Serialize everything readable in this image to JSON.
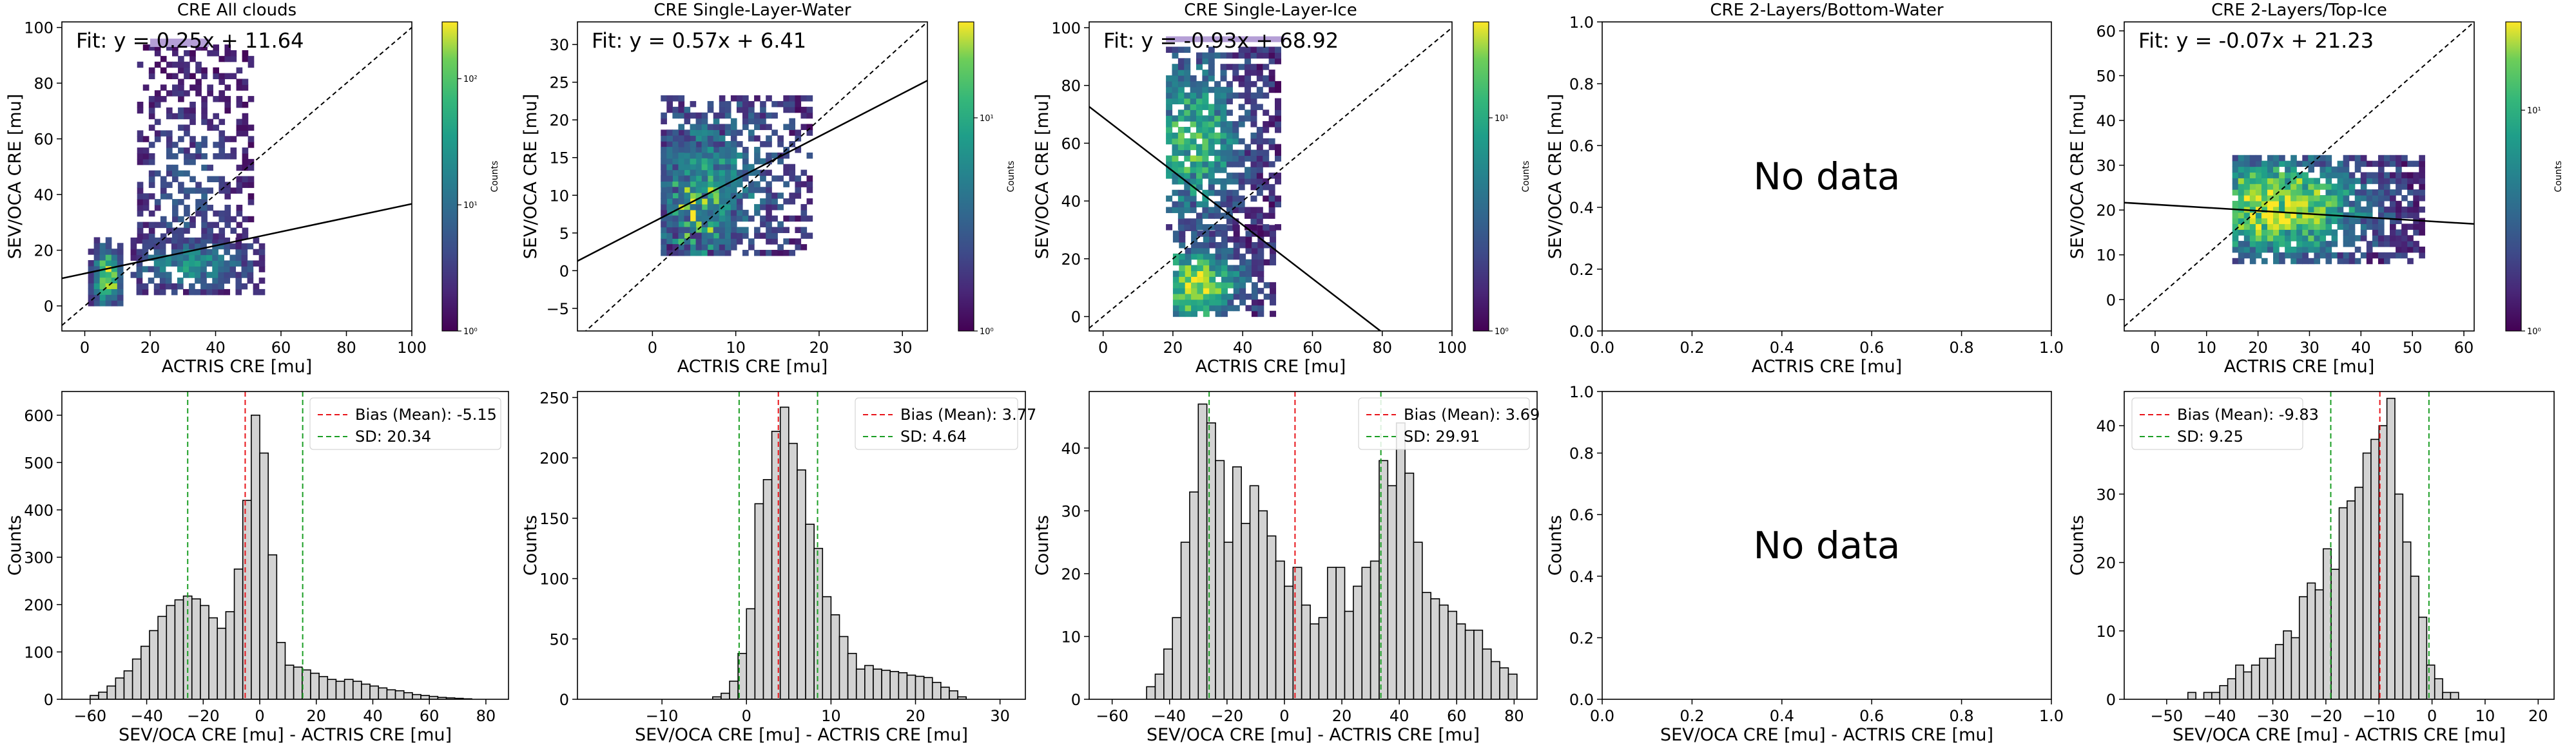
{
  "chart_data": [
    {
      "type": "heatmap",
      "title": "CRE All clouds",
      "xlabel": "ACTRIS CRE [mu]",
      "ylabel": "SEV/OCA CRE [mu]",
      "xlim": [
        -7,
        100
      ],
      "ylim": [
        -9,
        102
      ],
      "xticks": [
        0,
        20,
        40,
        60,
        80,
        100
      ],
      "yticks": [
        0,
        20,
        40,
        60,
        80,
        100
      ],
      "fit_text": "Fit: y = 0.25x + 11.64",
      "fit": {
        "slope": 0.25,
        "intercept": 11.64
      },
      "colorbar": {
        "label": "Counts",
        "ticks": [
          "10⁰",
          "10¹",
          "10²"
        ],
        "log_range": [
          0,
          2.45
        ]
      },
      "density": [
        {
          "x": [
            1,
            10
          ],
          "y": [
            0,
            24
          ],
          "peak": [
            6,
            9
          ],
          "max": 2.4,
          "spread": 0.8
        },
        {
          "x": [
            14,
            55
          ],
          "y": [
            4,
            24
          ],
          "peak": [
            32,
            14
          ],
          "max": 1.2,
          "spread": 0.6
        },
        {
          "x": [
            16,
            50
          ],
          "y": [
            24,
            92
          ],
          "peak": [
            30,
            40
          ],
          "max": 0.55,
          "spread": 0.4
        }
      ]
    },
    {
      "type": "heatmap",
      "title": "CRE Single-Layer-Water",
      "xlabel": "ACTRIS CRE [mu]",
      "ylabel": "SEV/OCA CRE [mu]",
      "xlim": [
        -9,
        33
      ],
      "ylim": [
        -8,
        33
      ],
      "xticks": [
        0,
        10,
        20,
        30
      ],
      "yticks": [
        -5,
        0,
        5,
        10,
        15,
        20,
        25,
        30
      ],
      "fit_text": "Fit: y = 0.57x + 6.41",
      "fit": {
        "slope": 0.57,
        "intercept": 6.41
      },
      "colorbar": {
        "label": "Counts",
        "ticks": [
          "10⁰",
          "10¹"
        ],
        "log_range": [
          0,
          1.45
        ]
      },
      "density": [
        {
          "x": [
            1,
            10
          ],
          "y": [
            2,
            18
          ],
          "peak": [
            5,
            8
          ],
          "max": 1.4,
          "spread": 0.9
        },
        {
          "x": [
            1,
            19
          ],
          "y": [
            2,
            23
          ],
          "peak": [
            7,
            12
          ],
          "max": 0.6,
          "spread": 0.5
        }
      ]
    },
    {
      "type": "heatmap",
      "title": "CRE Single-Layer-Ice",
      "xlabel": "ACTRIS CRE [mu]",
      "ylabel": "SEV/OCA CRE [mu]",
      "xlim": [
        -4,
        100
      ],
      "ylim": [
        -5,
        102
      ],
      "xticks": [
        0,
        20,
        40,
        60,
        80,
        100
      ],
      "yticks": [
        0,
        20,
        40,
        60,
        80,
        100
      ],
      "fit_text": "Fit: y = -0.93x + 68.92",
      "fit": {
        "slope": -0.93,
        "intercept": 68.92
      },
      "colorbar": {
        "label": "Counts",
        "ticks": [
          "10⁰",
          "10¹"
        ],
        "log_range": [
          0,
          1.45
        ]
      },
      "density": [
        {
          "x": [
            20,
            48
          ],
          "y": [
            0,
            30
          ],
          "peak": [
            26,
            10
          ],
          "max": 1.3,
          "spread": 0.7
        },
        {
          "x": [
            18,
            50
          ],
          "y": [
            30,
            92
          ],
          "peak": [
            25,
            60
          ],
          "max": 0.9,
          "spread": 0.6
        }
      ]
    },
    {
      "type": "heatmap",
      "title": "CRE 2-Layers/Bottom-Water",
      "xlabel": "ACTRIS CRE [mu]",
      "ylabel": "SEV/OCA CRE [mu]",
      "xlim": [
        0,
        1
      ],
      "ylim": [
        0,
        1
      ],
      "xticks": [
        0.0,
        0.2,
        0.4,
        0.6,
        0.8,
        1.0
      ],
      "yticks": [
        0.0,
        0.2,
        0.4,
        0.6,
        0.8,
        1.0
      ],
      "tick_format": "1dp",
      "no_data": "No data"
    },
    {
      "type": "heatmap",
      "title": "CRE 2-Layers/Top-Ice",
      "xlabel": "ACTRIS CRE [mu]",
      "ylabel": "SEV/OCA CRE [mu]",
      "xlim": [
        -6,
        62
      ],
      "ylim": [
        -7,
        62
      ],
      "xticks": [
        0,
        10,
        20,
        30,
        40,
        50,
        60
      ],
      "yticks": [
        0,
        10,
        20,
        30,
        40,
        50,
        60
      ],
      "fit_text": "Fit: y = -0.07x + 21.23",
      "fit": {
        "slope": -0.07,
        "intercept": 21.23
      },
      "colorbar": {
        "label": "Counts",
        "ticks": [
          "10⁰",
          "10¹"
        ],
        "log_range": [
          0,
          1.4
        ]
      },
      "density": [
        {
          "x": [
            15,
            52
          ],
          "y": [
            8,
            32
          ],
          "peak": [
            23,
            20
          ],
          "max": 1.35,
          "spread": 0.7
        }
      ]
    },
    {
      "type": "bar",
      "title": "",
      "xlabel": "SEV/OCA CRE [mu] - ACTRIS CRE [mu]",
      "ylabel": "Counts",
      "xlim": [
        -70,
        88
      ],
      "ylim": [
        0,
        650
      ],
      "xticks": [
        -60,
        -40,
        -20,
        0,
        20,
        40,
        60,
        80
      ],
      "yticks": [
        0,
        100,
        200,
        300,
        400,
        500,
        600
      ],
      "bin_start": -60,
      "bin_width": 3,
      "values": [
        8,
        15,
        28,
        45,
        60,
        85,
        112,
        145,
        175,
        198,
        210,
        218,
        212,
        198,
        172,
        150,
        185,
        275,
        420,
        600,
        520,
        305,
        120,
        72,
        68,
        62,
        55,
        48,
        42,
        38,
        42,
        38,
        32,
        28,
        24,
        20,
        18,
        14,
        10,
        8,
        6,
        4,
        3,
        2,
        1
      ],
      "bias": -5.15,
      "sd": 20.34,
      "legend": [
        "Bias (Mean): -5.15",
        "SD: 20.34"
      ]
    },
    {
      "type": "bar",
      "title": "",
      "xlabel": "SEV/OCA CRE [mu] - ACTRIS CRE [mu]",
      "ylabel": "Counts",
      "xlim": [
        -20,
        33
      ],
      "ylim": [
        0,
        255
      ],
      "xticks": [
        -10,
        0,
        10,
        20,
        30
      ],
      "yticks": [
        0,
        50,
        100,
        150,
        200,
        250
      ],
      "bin_start": -4,
      "bin_width": 1,
      "values": [
        2,
        5,
        15,
        38,
        75,
        162,
        182,
        222,
        242,
        212,
        190,
        145,
        125,
        85,
        70,
        52,
        38,
        25,
        28,
        25,
        24,
        23,
        22,
        20,
        19,
        18,
        14,
        10,
        7,
        2
      ],
      "bias": 3.77,
      "sd": 4.64,
      "legend": [
        "Bias (Mean): 3.77",
        "SD: 4.64"
      ]
    },
    {
      "type": "bar",
      "title": "",
      "xlabel": "SEV/OCA CRE [mu] - ACTRIS CRE [mu]",
      "ylabel": "Counts",
      "xlim": [
        -68,
        88
      ],
      "ylim": [
        0,
        49
      ],
      "xticks": [
        -60,
        -40,
        -20,
        0,
        20,
        40,
        60,
        80
      ],
      "yticks": [
        0,
        10,
        20,
        30,
        40
      ],
      "bin_start": -48,
      "bin_width": 3,
      "values": [
        2,
        4,
        8,
        13,
        25,
        33,
        47,
        44,
        38,
        25,
        37,
        28,
        34,
        30,
        26,
        22,
        18,
        21,
        15,
        12,
        13,
        21,
        21,
        14,
        18,
        21,
        22,
        38,
        34,
        44,
        36,
        25,
        17,
        16,
        15,
        14,
        12,
        11,
        11,
        8,
        6,
        5,
        4
      ],
      "bias": 3.69,
      "sd": 29.91,
      "legend": [
        "Bias (Mean): 3.69",
        "SD: 29.91"
      ]
    },
    {
      "type": "bar",
      "title": "",
      "xlabel": "SEV/OCA CRE [mu] - ACTRIS CRE [mu]",
      "ylabel": "Counts",
      "xlim": [
        0,
        1
      ],
      "ylim": [
        0,
        1
      ],
      "xticks": [
        0.0,
        0.2,
        0.4,
        0.6,
        0.8,
        1.0
      ],
      "yticks": [
        0.0,
        0.2,
        0.4,
        0.6,
        0.8,
        1.0
      ],
      "tick_format": "1dp",
      "no_data": "No data"
    },
    {
      "type": "bar",
      "title": "",
      "xlabel": "SEV/OCA CRE [mu] - ACTRIS CRE [mu]",
      "ylabel": "Counts",
      "xlim": [
        -58,
        23
      ],
      "ylim": [
        0,
        45
      ],
      "xticks": [
        -50,
        -40,
        -30,
        -20,
        -10,
        0,
        10,
        20
      ],
      "yticks": [
        0,
        10,
        20,
        30,
        40
      ],
      "bin_start": -46,
      "bin_width": 1.5,
      "values": [
        1,
        0,
        1,
        1,
        2,
        3,
        5,
        4,
        5,
        6,
        6,
        8,
        10,
        9,
        15,
        17,
        16,
        22,
        19,
        28,
        29,
        31,
        36,
        38,
        40,
        44,
        30,
        23,
        18,
        12,
        5,
        3,
        1,
        1
      ],
      "bias": -9.83,
      "sd": 9.25,
      "legend": [
        "Bias (Mean): -9.83",
        "SD: 9.25"
      ]
    }
  ]
}
